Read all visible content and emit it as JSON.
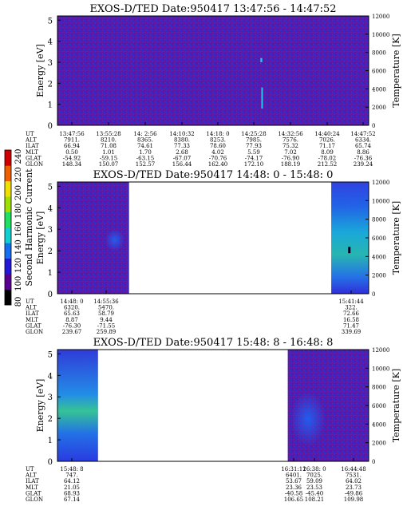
{
  "chart_data": {
    "type": "heatmap",
    "colorbar": {
      "label": "Second Harmonic Current",
      "ticks": [
        "240",
        "220",
        "200",
        "180",
        "160",
        "140",
        "120",
        "100",
        "80"
      ],
      "range": [
        80,
        240
      ],
      "colors": [
        "#000000",
        "#5a0090",
        "#2218d8",
        "#1570f0",
        "#10d0d0",
        "#20e060",
        "#a0e000",
        "#f0e000",
        "#f06000",
        "#d00000"
      ]
    },
    "panels": [
      {
        "title": "EXOS-D/TED   Date:950417  13:47:56 - 14:47:52",
        "ylabel": "Energy [eV]",
        "y2label": "Temperature [K]",
        "yticks": [
          "0",
          "1",
          "2",
          "3",
          "4",
          "5"
        ],
        "y2ticks": [
          "0",
          "2000",
          "4000",
          "6000",
          "8000",
          "10000",
          "12000"
        ],
        "ylim": [
          0,
          5.2
        ],
        "y2lim": [
          0,
          12000
        ],
        "data_coverage": [
          [
            0.0,
            1.0
          ]
        ],
        "enhancements": [
          {
            "x": [
              0.655,
              0.66
            ],
            "y": [
              0.8,
              1.8
            ],
            "level": "high"
          },
          {
            "x": [
              0.652,
              0.658
            ],
            "y": [
              3.0,
              3.2
            ],
            "level": "high"
          }
        ],
        "info": {
          "labels": [
            "UT",
            "ALT",
            "ILAT",
            "MLT",
            "GLAT",
            "GLON"
          ],
          "columns": [
            [
              "13:47:56",
              "7911.",
              "66.94",
              "0.50",
              "-54.92",
              "148.34"
            ],
            [
              "13:55:28",
              "8210.",
              "71.08",
              "1.01",
              "-59.15",
              "150.07"
            ],
            [
              "14: 2:56",
              "8365.",
              "74.61",
              "1.70",
              "-63.15",
              "152.57"
            ],
            [
              "14:10:32",
              "8380.",
              "77.33",
              "2.68",
              "-67.07",
              "156.44"
            ],
            [
              "14:18: 0",
              "8253.",
              "78.60",
              "4.02",
              "-70.76",
              "162.40"
            ],
            [
              "14:25:28",
              "7985.",
              "77.93",
              "5.59",
              "-74.17",
              "172.10"
            ],
            [
              "14:32:56",
              "7576.",
              "75.32",
              "7.02",
              "-76.90",
              "188.19"
            ],
            [
              "14:40:24",
              "7026.",
              "71.17",
              "8.09",
              "-78.02",
              "212.52"
            ],
            [
              "14:47:52",
              "6334.",
              "65.74",
              "8.86",
              "-76.36",
              "239.24"
            ]
          ]
        }
      },
      {
        "title": "EXOS-D/TED   Date:950417  14:48: 0 - 15:48: 0",
        "ylabel": "Energy [eV]",
        "y2label": "Temperature [K]",
        "yticks": [
          "0",
          "1",
          "2",
          "3",
          "4",
          "5"
        ],
        "y2ticks": [
          "0",
          "2000",
          "4000",
          "6000",
          "8000",
          "10000",
          "12000"
        ],
        "ylim": [
          0,
          5.2
        ],
        "y2lim": [
          0,
          12000
        ],
        "data_coverage": [
          [
            0.0,
            0.23
          ],
          [
            0.88,
            1.0
          ]
        ],
        "info": {
          "labels": [
            "UT",
            "ALT",
            "ILAT",
            "MLT",
            "GLAT",
            "GLON"
          ],
          "columns": [
            [
              "14:48: 0",
              "6320.",
              "65.63",
              "8.87",
              "-76.30",
              "239.67"
            ],
            [
              "14:55:36",
              "5470.",
              "58.79",
              "9.44",
              "-71.55",
              "259.89"
            ],
            [
              "15:41:44",
              "322.",
              "72.66",
              "16.58",
              "71.47",
              "339.69"
            ]
          ]
        }
      },
      {
        "title": "EXOS-D/TED   Date:950417  15:48: 8 - 16:48: 8",
        "ylabel": "Energy [eV]",
        "y2label": "Temperature [K]",
        "yticks": [
          "0",
          "1",
          "2",
          "3",
          "4",
          "5"
        ],
        "y2ticks": [
          "0",
          "2000",
          "4000",
          "6000",
          "8000",
          "10000",
          "12000"
        ],
        "ylim": [
          0,
          5.2
        ],
        "y2lim": [
          0,
          12000
        ],
        "data_coverage": [
          [
            0.0,
            0.13
          ],
          [
            0.74,
            1.0
          ]
        ],
        "info": {
          "labels": [
            "UT",
            "ALT",
            "ILAT",
            "MLT",
            "GLAT",
            "GLON"
          ],
          "columns": [
            [
              "15:48: 8",
              "747.",
              "64.12",
              "21.05",
              "68.93",
              "67.14"
            ],
            [
              "16:31:12",
              "6401.",
              "53.67",
              "23.36",
              "-40.58",
              "106.65"
            ],
            [
              "16:38: 0",
              "7025.",
              "59.09",
              "23.53",
              "-45.40",
              "108.21"
            ],
            [
              "16:44:48",
              "7531.",
              "64.02",
              "23.73",
              "-49.86",
              "109.98"
            ]
          ]
        }
      }
    ]
  }
}
